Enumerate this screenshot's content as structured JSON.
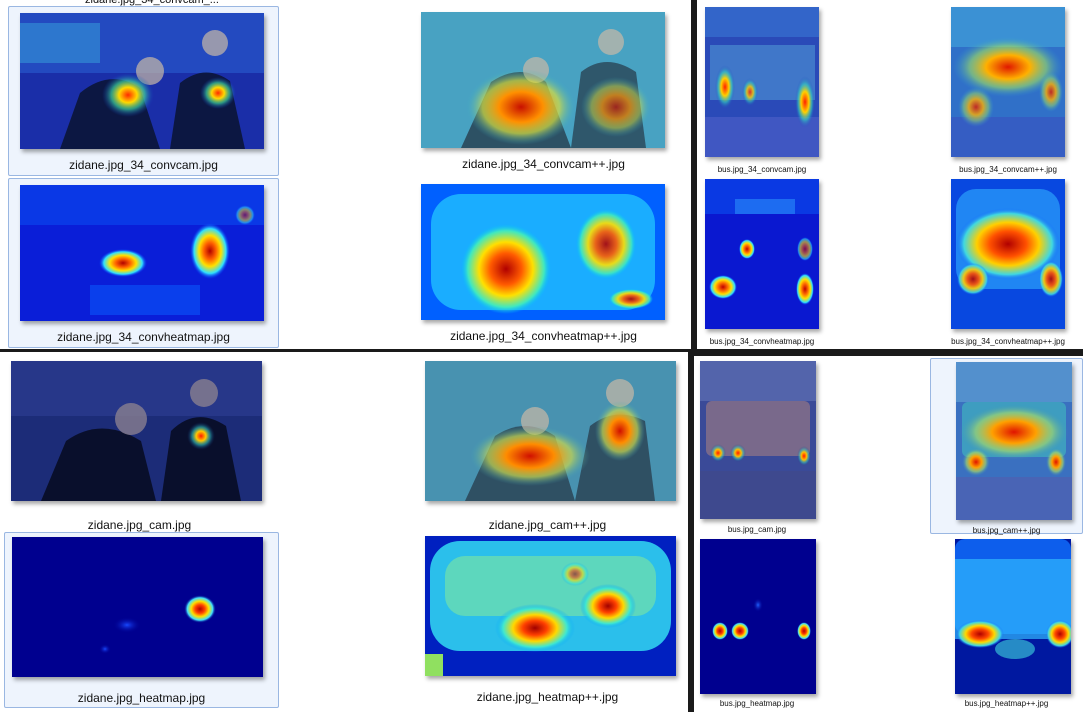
{
  "panes": {
    "zidane_conv": {
      "items": [
        {
          "name": "zidane.jpg_34_convcam.jpg",
          "kind": "cam"
        },
        {
          "name": "zidane.jpg_34_convcam++.jpg",
          "kind": "campp"
        },
        {
          "name": "zidane.jpg_34_convheatmap.jpg",
          "kind": "heat"
        },
        {
          "name": "zidane.jpg_34_convheatmap++.jpg",
          "kind": "heatpp"
        }
      ]
    },
    "bus_conv": {
      "items": [
        {
          "name": "bus.jpg_34_convcam.jpg",
          "kind": "cam"
        },
        {
          "name": "bus.jpg_34_convcam++.jpg",
          "kind": "campp"
        },
        {
          "name": "bus.jpg_34_convheatmap.jpg",
          "kind": "heat"
        },
        {
          "name": "bus.jpg_34_convheatmap++.jpg",
          "kind": "heatpp"
        }
      ]
    },
    "zidane_final": {
      "items": [
        {
          "name": "zidane.jpg_cam.jpg",
          "kind": "cam"
        },
        {
          "name": "zidane.jpg_cam++.jpg",
          "kind": "campp"
        },
        {
          "name": "zidane.jpg_heatmap.jpg",
          "kind": "heat"
        },
        {
          "name": "zidane.jpg_heatmap++.jpg",
          "kind": "heatpp"
        }
      ]
    },
    "bus_final": {
      "items": [
        {
          "name": "bus.jpg_cam.jpg",
          "kind": "cam"
        },
        {
          "name": "bus.jpg_cam++.jpg",
          "kind": "campp"
        },
        {
          "name": "bus.jpg_heatmap.jpg",
          "kind": "heat"
        },
        {
          "name": "bus.jpg_heatmap++.jpg",
          "kind": "heatpp"
        }
      ]
    }
  },
  "colors": {
    "selection_fill": "#eef4fd",
    "selection_border": "#9ab7e2",
    "heat_low": "#00008f",
    "heat_high": "#8b0000"
  }
}
